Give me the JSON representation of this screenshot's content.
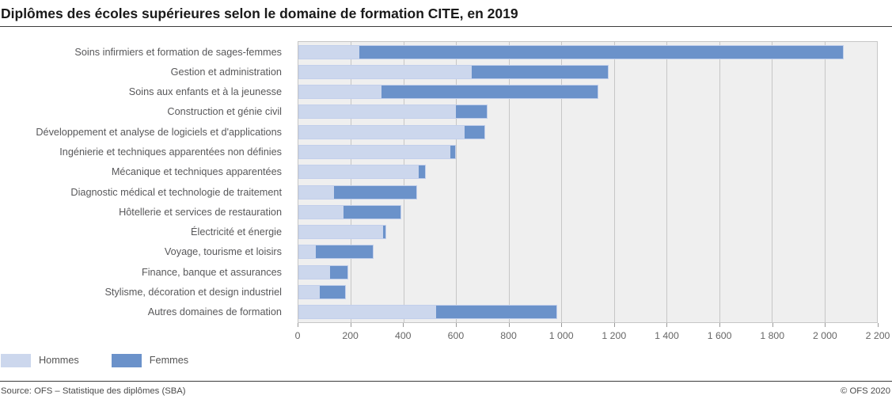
{
  "title": "Diplômes des écoles supérieures selon le domaine de formation CITE, en 2019",
  "colors": {
    "hommes": "#ccd7ed",
    "femmes": "#6b92ca",
    "plot_background": "#efefef",
    "gridline": "#c6c6c6",
    "bar_outline": "#c2cfeb"
  },
  "legend": {
    "items": [
      {
        "label": "Hommes",
        "color": "#ccd7ed"
      },
      {
        "label": "Femmes",
        "color": "#6b92ca"
      }
    ]
  },
  "footer": {
    "source": "Source: OFS – Statistique des diplômes (SBA)",
    "copyright": "© OFS 2020"
  },
  "chart_data": {
    "type": "bar",
    "orientation": "horizontal",
    "stacked": true,
    "title": "Diplômes des écoles supérieures selon le domaine de formation CITE, en 2019",
    "categories": [
      "Soins infirmiers et formation de sages-femmes",
      "Gestion et administration",
      "Soins aux enfants et à la jeunesse",
      "Construction et génie civil",
      "Développement et analyse de logiciels et d'applications",
      "Ingénierie et techniques apparentées non définies",
      "Mécanique et techniques apparentées",
      "Diagnostic médical et technologie de traitement",
      "Hôtellerie et services de restauration",
      "Électricité et énergie",
      "Voyage, tourisme et loisirs",
      "Finance, banque et assurances",
      "Stylisme, décoration et design industriel",
      "Autres domaines de formation"
    ],
    "series": [
      {
        "name": "Hommes",
        "color": "#ccd7ed",
        "values": [
          230,
          660,
          315,
          600,
          635,
          580,
          460,
          135,
          170,
          325,
          65,
          120,
          80,
          525
        ]
      },
      {
        "name": "Femmes",
        "color": "#6b92ca",
        "values": [
          1845,
          520,
          825,
          120,
          75,
          20,
          25,
          315,
          220,
          10,
          220,
          70,
          100,
          460
        ]
      }
    ],
    "xlabel": "",
    "ylabel": "",
    "xlim": [
      0,
      2200
    ],
    "xticks": [
      0,
      200,
      400,
      600,
      800,
      1000,
      1200,
      1400,
      1600,
      1800,
      2000,
      2200
    ],
    "xtick_labels": [
      "0",
      "200",
      "400",
      "600",
      "800",
      "1 000",
      "1 200",
      "1 400",
      "1 600",
      "1 800",
      "2 000",
      "2 200"
    ],
    "grid": "vertical",
    "legend_position": "bottom-left"
  }
}
